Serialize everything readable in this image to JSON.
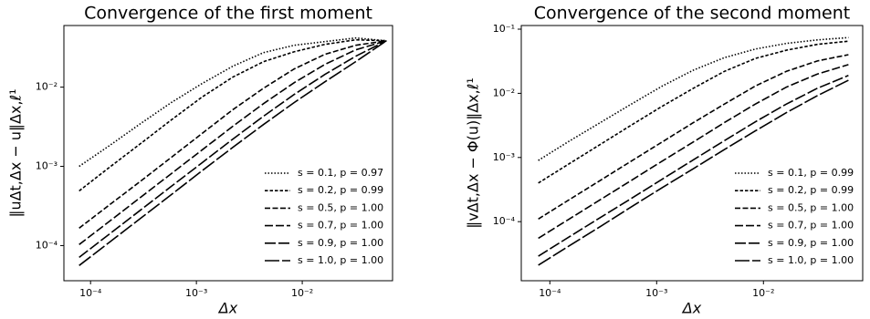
{
  "chart_data": [
    {
      "type": "line",
      "title": "Convergence of the first moment",
      "x_label": "Δx",
      "y_label": "‖uΔt,Δx − u‖Δx,ℓ¹",
      "log_x": true,
      "log_y": true,
      "legend": "lower right",
      "x": [
        7.8e-05,
        0.000152,
        0.000297,
        0.00058,
        0.00113,
        0.00221,
        0.00431,
        0.0084,
        0.0164,
        0.032,
        0.0625
      ],
      "xlim": [
        5.6e-05,
        0.0713
      ],
      "ylim": [
        3.6e-05,
        0.06
      ],
      "xticks": [
        {
          "value": 0.0001,
          "label": "10⁻⁴"
        },
        {
          "value": 0.001,
          "label": "10⁻³"
        },
        {
          "value": 0.01,
          "label": "10⁻²"
        }
      ],
      "yticks": [
        {
          "value": 0.0001,
          "label": "10⁻⁴"
        },
        {
          "value": 0.001,
          "label": "10⁻³"
        },
        {
          "value": 0.01,
          "label": "10⁻²"
        }
      ],
      "series": [
        {
          "name": "s = 0.1, p = 0.97",
          "color": "#000000",
          "dash": "1.5 2",
          "values": [
            0.001,
            0.00184,
            0.00347,
            0.0064,
            0.0111,
            0.0184,
            0.0273,
            0.0338,
            0.0376,
            0.0418,
            0.0385
          ]
        },
        {
          "name": "s = 0.2, p = 0.99",
          "color": "#000000",
          "dash": "3.5 2",
          "values": [
            0.00049,
            0.00098,
            0.00194,
            0.00386,
            0.0075,
            0.0134,
            0.021,
            0.028,
            0.0347,
            0.0396,
            0.0385
          ]
        },
        {
          "name": "s = 0.5, p = 1.00",
          "color": "#000000",
          "dash": "6 2.5",
          "values": [
            0.000166,
            0.000329,
            0.00065,
            0.0013,
            0.0026,
            0.0052,
            0.0097,
            0.017,
            0.026,
            0.0338,
            0.0385
          ]
        },
        {
          "name": "s = 0.7, p = 1.00",
          "color": "#000000",
          "dash": "9 3",
          "values": [
            0.000103,
            0.000204,
            0.000407,
            0.00081,
            0.00161,
            0.00321,
            0.0062,
            0.0114,
            0.0194,
            0.0296,
            0.0385
          ]
        },
        {
          "name": "s = 0.9, p = 1.00",
          "color": "#000000",
          "dash": "12 3",
          "values": [
            7.1e-05,
            0.000141,
            0.000281,
            0.00056,
            0.00111,
            0.00221,
            0.0043,
            0.0081,
            0.0145,
            0.0246,
            0.0385
          ]
        },
        {
          "name": "s = 1.0, p = 1.00",
          "color": "#000000",
          "dash": "16 3",
          "values": [
            5.6e-05,
            0.000111,
            0.000221,
            0.00044,
            0.00088,
            0.00174,
            0.00338,
            0.0064,
            0.0117,
            0.021,
            0.0385
          ]
        }
      ]
    },
    {
      "type": "line",
      "title": "Convergence of the second moment",
      "x_label": "Δx",
      "y_label": "‖vΔt,Δx − Φ(u)‖Δx,ℓ¹",
      "log_x": true,
      "log_y": true,
      "legend": "lower right",
      "x": [
        7.8e-05,
        0.000152,
        0.000297,
        0.00058,
        0.00113,
        0.00221,
        0.00431,
        0.0084,
        0.0164,
        0.032,
        0.0625
      ],
      "xlim": [
        5.4e-05,
        0.085
      ],
      "ylim": [
        1.2e-05,
        0.114
      ],
      "xticks": [
        {
          "value": 0.0001,
          "label": "10⁻⁴"
        },
        {
          "value": 0.001,
          "label": "10⁻³"
        },
        {
          "value": 0.01,
          "label": "10⁻²"
        }
      ],
      "yticks": [
        {
          "value": 0.0001,
          "label": "10⁻⁴"
        },
        {
          "value": 0.001,
          "label": "10⁻³"
        },
        {
          "value": 0.01,
          "label": "10⁻²"
        },
        {
          "value": 0.1,
          "label": "10⁻¹"
        }
      ],
      "series": [
        {
          "name": "s = 0.1, p = 0.99",
          "color": "#000000",
          "dash": "1.5 2",
          "values": [
            0.0009,
            0.0018,
            0.0035,
            0.0068,
            0.013,
            0.023,
            0.036,
            0.049,
            0.06,
            0.068,
            0.074
          ]
        },
        {
          "name": "s = 0.2, p = 0.99",
          "color": "#000000",
          "dash": "3.5 2",
          "values": [
            0.0004,
            0.0008,
            0.0016,
            0.0032,
            0.0063,
            0.012,
            0.022,
            0.035,
            0.047,
            0.058,
            0.065
          ]
        },
        {
          "name": "s = 0.5, p = 1.00",
          "color": "#000000",
          "dash": "6 2.5",
          "values": [
            0.00011,
            0.00022,
            0.00044,
            0.00088,
            0.00175,
            0.0035,
            0.0068,
            0.013,
            0.022,
            0.032,
            0.04
          ]
        },
        {
          "name": "s = 0.7, p = 1.00",
          "color": "#000000",
          "dash": "9 3",
          "values": [
            5.5e-05,
            0.00011,
            0.00022,
            0.00044,
            0.00088,
            0.00175,
            0.0035,
            0.0068,
            0.0125,
            0.02,
            0.028
          ]
        },
        {
          "name": "s = 0.9, p = 1.00",
          "color": "#000000",
          "dash": "12 3",
          "values": [
            2.9e-05,
            5.8e-05,
            0.000116,
            0.00023,
            0.00046,
            0.00092,
            0.00183,
            0.0036,
            0.0068,
            0.012,
            0.019
          ]
        },
        {
          "name": "s = 1.0, p = 1.00",
          "color": "#000000",
          "dash": "16 3",
          "values": [
            2.1e-05,
            4.2e-05,
            8.4e-05,
            0.00017,
            0.00034,
            0.00067,
            0.00133,
            0.0026,
            0.005,
            0.0092,
            0.016
          ]
        }
      ]
    }
  ]
}
